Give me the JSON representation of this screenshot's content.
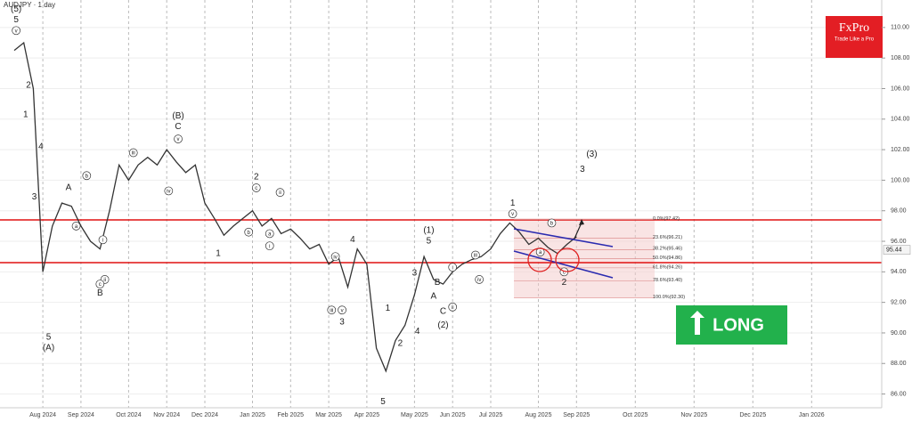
{
  "chart_data": {
    "type": "line",
    "title": "AUDJPY · 1 day",
    "color": "#333333",
    "logo": {
      "brand": "FxPro",
      "tagline": "Trade Like a Pro"
    },
    "signal": "LONG",
    "categories": [
      null,
      null,
      null,
      "Aug 2024",
      null,
      null,
      null,
      "Sep 2024",
      null,
      null,
      null,
      null,
      "Oct 2024",
      null,
      null,
      null,
      "Nov 2024",
      null,
      null,
      null,
      "Dec 2024",
      null,
      null,
      null,
      null,
      "Jan 2025",
      null,
      null,
      null,
      "Feb 2025",
      null,
      null,
      null,
      "Mar 2025",
      null,
      null,
      null,
      "Apr 2025",
      null,
      null,
      null,
      null,
      "May 2025",
      null,
      null,
      null,
      "Jun 2025",
      null,
      null,
      null,
      "Jul 2025",
      null,
      null,
      null,
      null,
      "Aug 2025",
      null,
      null,
      null,
      "Sep 2025",
      "Oct 2025",
      "Nov 2025",
      "Dec 2025",
      "Jan 2026"
    ],
    "values": [
      108.5,
      109,
      106,
      94,
      97,
      98.5,
      98.3,
      97,
      96,
      95.5,
      98,
      101,
      100,
      101,
      101.5,
      101,
      102,
      101.2,
      100.5,
      101,
      98.5,
      97.5,
      96.4,
      97,
      97.5,
      98,
      97,
      97.5,
      96.5,
      96.8,
      96.2,
      95.5,
      95.8,
      94.5,
      95,
      93,
      95.5,
      94.5,
      89,
      87.5,
      89.5,
      90.5,
      92.5,
      95,
      93.5,
      93.2,
      94,
      94.5,
      94.8,
      95,
      95.5,
      96.5,
      97.2,
      96.6,
      95.8,
      96.2,
      95.6,
      95.2,
      95.8,
      96.3,
      null,
      null,
      null,
      null
    ],
    "ylim": [
      85.1,
      111.8
    ],
    "yticks": [
      {
        "value": 86,
        "label": "86.00"
      },
      {
        "value": 88,
        "label": "88.00"
      },
      {
        "value": 90,
        "label": "90.00"
      },
      {
        "value": 92,
        "label": "92.00"
      },
      {
        "value": 94,
        "label": "94.00"
      },
      {
        "value": 96,
        "label": "96.00"
      },
      {
        "value": 98,
        "label": "98.00"
      },
      {
        "value": 100,
        "label": "100.00"
      },
      {
        "value": 102,
        "label": "102.00"
      },
      {
        "value": 104,
        "label": "104.00"
      },
      {
        "value": 106,
        "label": "106.00"
      },
      {
        "value": 108,
        "label": "108.00"
      },
      {
        "value": 110,
        "label": "110.00"
      }
    ],
    "grid": true,
    "last_price": 95.44,
    "levels": [
      97.4,
      94.6
    ],
    "fib_levels": [
      {
        "value": 97.42,
        "label": "0.0%(97.42)"
      },
      {
        "value": 96.21,
        "label": "23.6%(96.21)"
      },
      {
        "value": 95.46,
        "label": "38.2%(95.46)"
      },
      {
        "value": 94.86,
        "label": "50.0%(94.86)"
      },
      {
        "value": 94.26,
        "label": "61.8%(94.26)"
      },
      {
        "value": 93.4,
        "label": "78.6%(93.40)"
      },
      {
        "value": 92.3,
        "label": "100.0%(92.30)"
      }
    ],
    "annotations": [
      {
        "text": "(5)",
        "x": 0.2,
        "y": 111.2
      },
      {
        "text": "5",
        "x": 0.2,
        "y": 110.5
      },
      {
        "text": "v",
        "x": 0.2,
        "y": 109.8,
        "circled": true
      },
      {
        "text": "2",
        "x": 1.5,
        "y": 106.2
      },
      {
        "text": "1",
        "x": 1.2,
        "y": 104.3
      },
      {
        "text": "4",
        "x": 2.8,
        "y": 102.2
      },
      {
        "text": "3",
        "x": 2.1,
        "y": 98.9
      },
      {
        "text": "5",
        "x": 3.6,
        "y": 89.7
      },
      {
        "text": "(A)",
        "x": 3.6,
        "y": 89
      },
      {
        "text": "A",
        "x": 5.7,
        "y": 99.5
      },
      {
        "text": "b",
        "x": 7.6,
        "y": 100.3,
        "circled": true
      },
      {
        "text": "a",
        "x": 6.5,
        "y": 97,
        "circled": true
      },
      {
        "text": "i",
        "x": 9.3,
        "y": 96.1,
        "circled": true
      },
      {
        "text": "ii",
        "x": 9.5,
        "y": 93.5,
        "circled": true
      },
      {
        "text": "c",
        "x": 9,
        "y": 93.2,
        "circled": true
      },
      {
        "text": "B",
        "x": 9,
        "y": 92.6
      },
      {
        "text": "iii",
        "x": 12.5,
        "y": 101.8,
        "circled": true
      },
      {
        "text": "iv",
        "x": 16.2,
        "y": 99.3,
        "circled": true
      },
      {
        "text": "(B)",
        "x": 17.2,
        "y": 104.2
      },
      {
        "text": "C",
        "x": 17.2,
        "y": 103.5
      },
      {
        "text": "v",
        "x": 17.2,
        "y": 102.7,
        "circled": true
      },
      {
        "text": "1",
        "x": 21.4,
        "y": 95.2
      },
      {
        "text": "2",
        "x": 25.4,
        "y": 100.2
      },
      {
        "text": "c",
        "x": 25.4,
        "y": 99.5,
        "circled": true
      },
      {
        "text": "ii",
        "x": 27.9,
        "y": 99.2,
        "circled": true
      },
      {
        "text": "b",
        "x": 24.6,
        "y": 96.6,
        "circled": true
      },
      {
        "text": "a",
        "x": 26.8,
        "y": 96.5,
        "circled": true
      },
      {
        "text": "i",
        "x": 26.8,
        "y": 95.7,
        "circled": true
      },
      {
        "text": "iv",
        "x": 33.7,
        "y": 95,
        "circled": true
      },
      {
        "text": "4",
        "x": 35.5,
        "y": 96.1
      },
      {
        "text": "v",
        "x": 34.4,
        "y": 91.5,
        "circled": true
      },
      {
        "text": "iii",
        "x": 33.3,
        "y": 91.5,
        "circled": true
      },
      {
        "text": "3",
        "x": 34.4,
        "y": 90.7
      },
      {
        "text": "1",
        "x": 39.2,
        "y": 91.6
      },
      {
        "text": "2",
        "x": 40.5,
        "y": 89.3
      },
      {
        "text": "5",
        "x": 38.7,
        "y": 85.5
      },
      {
        "text": "3",
        "x": 42,
        "y": 93.9
      },
      {
        "text": "4",
        "x": 42.3,
        "y": 90.1
      },
      {
        "text": "(1)",
        "x": 43.5,
        "y": 96.7
      },
      {
        "text": "5",
        "x": 43.5,
        "y": 96
      },
      {
        "text": "B",
        "x": 44.4,
        "y": 93.3
      },
      {
        "text": "A",
        "x": 44,
        "y": 92.4
      },
      {
        "text": "C",
        "x": 45,
        "y": 91.4
      },
      {
        "text": "ii",
        "x": 46,
        "y": 91.7,
        "circled": true
      },
      {
        "text": "(2)",
        "x": 45,
        "y": 90.5
      },
      {
        "text": "i",
        "x": 46,
        "y": 94.3,
        "circled": true
      },
      {
        "text": "iii",
        "x": 48.4,
        "y": 95.1,
        "circled": true
      },
      {
        "text": "iv",
        "x": 48.8,
        "y": 93.5,
        "circled": true
      },
      {
        "text": "1",
        "x": 52.3,
        "y": 98.5
      },
      {
        "text": "v",
        "x": 52.3,
        "y": 97.8,
        "circled": true
      },
      {
        "text": "b",
        "x": 56.4,
        "y": 97.2,
        "circled": true
      },
      {
        "text": "a",
        "x": 55.2,
        "y": 95.3,
        "circled": true
      },
      {
        "text": "c",
        "x": 57.7,
        "y": 94,
        "circled": true
      },
      {
        "text": "2",
        "x": 57.7,
        "y": 93.3
      },
      {
        "text": "(3)",
        "x": 59.26,
        "y": 101.7
      },
      {
        "text": "3",
        "x": 59.1,
        "y": 100.7
      }
    ]
  }
}
